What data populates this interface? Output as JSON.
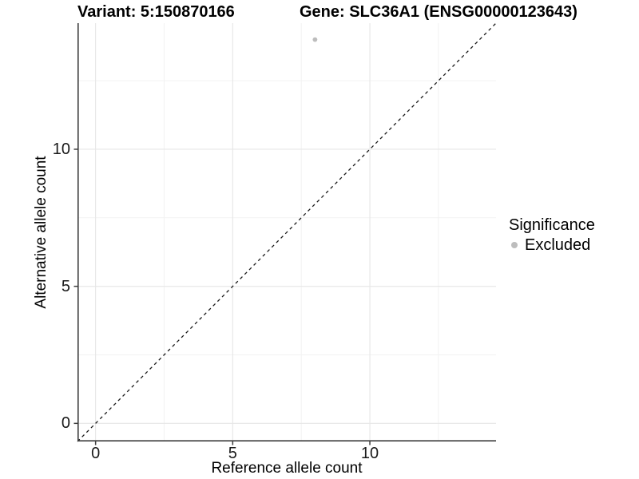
{
  "chart_data": {
    "type": "scatter",
    "titles": {
      "variant": "Variant: 5:150870166",
      "gene": "Gene: SLC36A1 (ENSG00000123643)"
    },
    "xlabel": "Reference allele count",
    "ylabel": "Alternative allele count",
    "xlim": [
      -0.66,
      14.6
    ],
    "ylim": [
      -0.66,
      14.6
    ],
    "x_ticks": [
      0,
      5,
      10
    ],
    "y_ticks": [
      0,
      5,
      10
    ],
    "x_minor_ticks": [
      2.5,
      7.5,
      12.5
    ],
    "y_minor_ticks": [
      2.5,
      7.5,
      12.5
    ],
    "grid": "major and minor gridlines on white background",
    "legend_position": "right",
    "legend": {
      "title": "Significance",
      "items": [
        {
          "label": "Excluded",
          "color": "#bdbdbd",
          "marker": "circle"
        }
      ]
    },
    "series": [
      {
        "name": "Excluded",
        "color": "#bdbdbd",
        "points": [
          {
            "x": 8,
            "y": 14
          }
        ]
      }
    ],
    "reference_line": {
      "kind": "identity",
      "style": "dashed",
      "color": "#1a1a1a",
      "from": [
        -0.66,
        -0.66
      ],
      "to": [
        14.6,
        14.6
      ]
    },
    "colors": {
      "background": "#ffffff",
      "axis_line": "#3d3d3d",
      "grid_major": "#e6e6e6",
      "grid_minor": "#f2f2f2",
      "text": "#000000"
    }
  }
}
